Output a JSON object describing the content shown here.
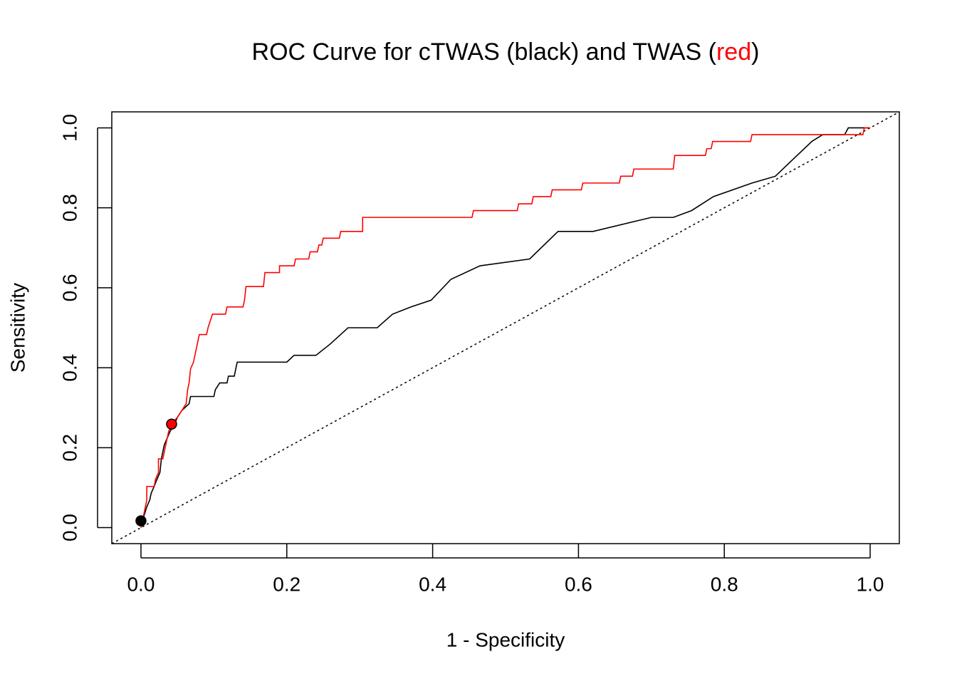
{
  "chart_data": {
    "type": "line",
    "title": [
      {
        "text": "ROC Curve for cTWAS (black) and TWAS (",
        "color": "#000000"
      },
      {
        "text": "red",
        "color": "#ff0000"
      },
      {
        "text": ")",
        "color": "#000000"
      }
    ],
    "xlabel": "1 - Specificity",
    "ylabel": "Sensitivity",
    "xlim": [
      -0.04,
      1.04
    ],
    "ylim": [
      -0.04,
      1.04
    ],
    "xticks": [
      {
        "value": 0,
        "label": "0.0"
      },
      0.2,
      0.4,
      0.6,
      0.8,
      {
        "value": 1,
        "label": "1.0"
      }
    ],
    "yticks": [
      {
        "value": 0,
        "label": "0.0"
      },
      0.2,
      0.4,
      0.6,
      0.8,
      {
        "value": 1,
        "label": "1.0"
      }
    ],
    "grid": false,
    "series": [
      {
        "color": "#000000",
        "x": [
          0,
          0.002,
          0.008,
          0.012,
          0.014,
          0.018,
          0.022,
          0.026,
          0.028,
          0.03,
          0.032,
          0.036,
          0.04,
          0.046,
          0.05,
          0.056,
          0.066,
          0.068,
          0.1,
          0.102,
          0.108,
          0.118,
          0.12,
          0.128,
          0.13,
          0.132,
          0.2,
          0.21,
          0.24,
          0.26,
          0.284,
          0.324,
          0.345,
          0.37,
          0.398,
          0.425,
          0.465,
          0.533,
          0.572,
          0.62,
          0.7,
          0.73,
          0.755,
          0.785,
          0.838,
          0.87,
          0.89,
          0.92,
          0.935,
          0.965,
          0.97,
          1.0
        ],
        "values": [
          0,
          0.017,
          0.052,
          0.069,
          0.086,
          0.103,
          0.121,
          0.138,
          0.172,
          0.19,
          0.207,
          0.224,
          0.241,
          0.259,
          0.276,
          0.293,
          0.31,
          0.328,
          0.328,
          0.345,
          0.362,
          0.362,
          0.379,
          0.379,
          0.397,
          0.414,
          0.414,
          0.431,
          0.431,
          0.46,
          0.5,
          0.5,
          0.534,
          0.552,
          0.569,
          0.621,
          0.655,
          0.672,
          0.741,
          0.741,
          0.776,
          0.776,
          0.793,
          0.828,
          0.862,
          0.879,
          0.914,
          0.966,
          0.983,
          0.983,
          1.0,
          1.0
        ]
      },
      {
        "color": "#ff0000",
        "x": [
          0,
          0.002,
          0.004,
          0.006,
          0.008,
          0.008,
          0.018,
          0.02,
          0.024,
          0.024,
          0.03,
          0.034,
          0.038,
          0.042,
          0.05,
          0.056,
          0.062,
          0.064,
          0.066,
          0.068,
          0.072,
          0.074,
          0.076,
          0.078,
          0.08,
          0.09,
          0.092,
          0.095,
          0.098,
          0.116,
          0.118,
          0.14,
          0.142,
          0.144,
          0.168,
          0.17,
          0.19,
          0.19,
          0.21,
          0.212,
          0.23,
          0.232,
          0.242,
          0.244,
          0.248,
          0.25,
          0.272,
          0.274,
          0.304,
          0.304,
          0.454,
          0.456,
          0.516,
          0.518,
          0.536,
          0.538,
          0.562,
          0.564,
          0.604,
          0.606,
          0.656,
          0.658,
          0.674,
          0.676,
          0.73,
          0.732,
          0.774,
          0.776,
          0.782,
          0.784,
          0.836,
          0.838,
          0.99,
          0.992,
          1.0
        ],
        "values": [
          0,
          0.017,
          0.034,
          0.052,
          0.069,
          0.103,
          0.103,
          0.121,
          0.138,
          0.172,
          0.172,
          0.207,
          0.241,
          0.259,
          0.276,
          0.293,
          0.31,
          0.345,
          0.362,
          0.397,
          0.414,
          0.431,
          0.448,
          0.466,
          0.483,
          0.483,
          0.5,
          0.517,
          0.534,
          0.534,
          0.552,
          0.552,
          0.569,
          0.603,
          0.603,
          0.638,
          0.638,
          0.655,
          0.655,
          0.672,
          0.672,
          0.69,
          0.69,
          0.707,
          0.707,
          0.724,
          0.724,
          0.741,
          0.741,
          0.776,
          0.776,
          0.793,
          0.793,
          0.81,
          0.81,
          0.828,
          0.828,
          0.845,
          0.845,
          0.862,
          0.862,
          0.879,
          0.879,
          0.897,
          0.897,
          0.931,
          0.931,
          0.948,
          0.948,
          0.966,
          0.966,
          0.983,
          0.983,
          1.0,
          1.0
        ]
      }
    ],
    "points": [
      {
        "x": 0,
        "y": 0.017,
        "color": "#000000"
      },
      {
        "x": 0.042,
        "y": 0.259,
        "color": "#ff0000"
      }
    ]
  }
}
